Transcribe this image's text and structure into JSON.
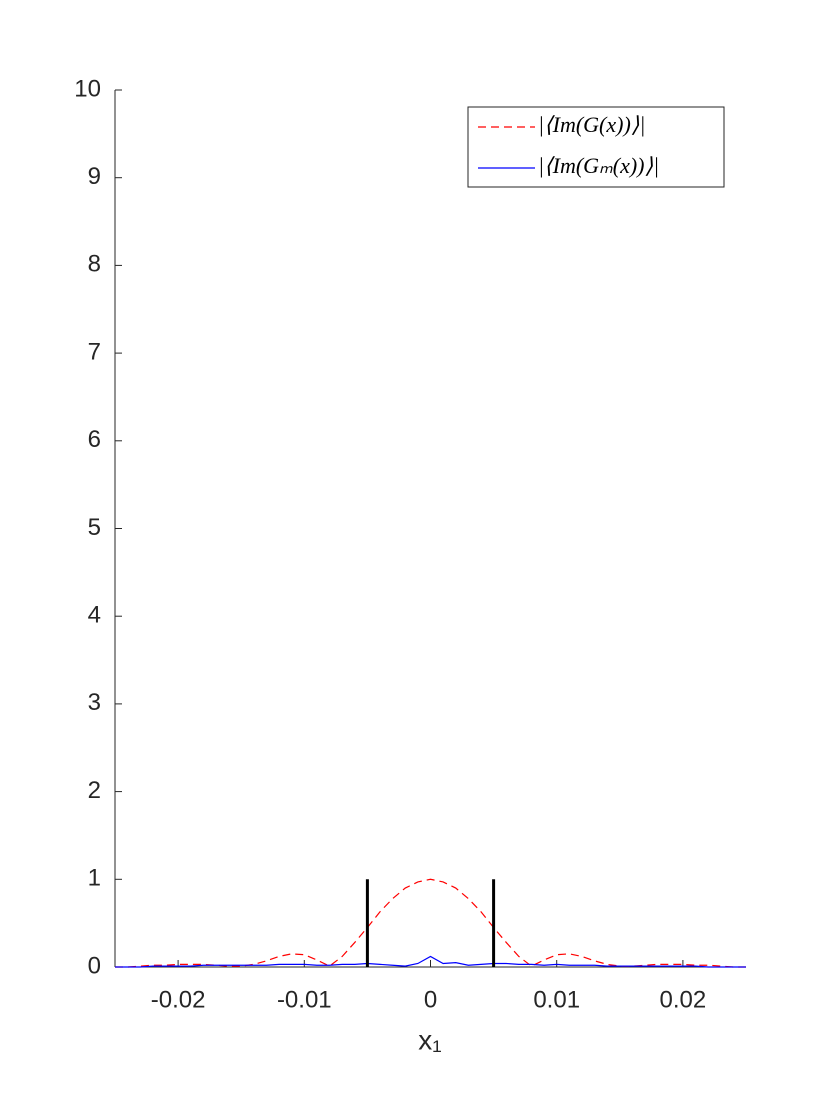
{
  "chart_data": {
    "type": "line",
    "x": [
      -0.025,
      -0.024,
      -0.023,
      -0.022,
      -0.021,
      -0.02,
      -0.019,
      -0.018,
      -0.017,
      -0.016,
      -0.015,
      -0.014,
      -0.013,
      -0.012,
      -0.011,
      -0.01,
      -0.009,
      -0.008,
      -0.007,
      -0.006,
      -0.005,
      -0.004,
      -0.003,
      -0.002,
      -0.001,
      0,
      0.001,
      0.002,
      0.003,
      0.004,
      0.005,
      0.006,
      0.007,
      0.008,
      0.009,
      0.01,
      0.011,
      0.012,
      0.013,
      0.014,
      0.015,
      0.016,
      0.017,
      0.018,
      0.019,
      0.02,
      0.021,
      0.022,
      0.023,
      0.024,
      0.025
    ],
    "series": [
      {
        "name": "|⟨Im(G(x))⟩|",
        "color": "#ff0000",
        "dash": true,
        "values": [
          0,
          0,
          0.01,
          0.02,
          0.02,
          0.03,
          0.03,
          0.03,
          0.02,
          0.01,
          0.01,
          0.03,
          0.07,
          0.12,
          0.15,
          0.14,
          0.08,
          0.01,
          0.12,
          0.28,
          0.45,
          0.63,
          0.78,
          0.9,
          0.97,
          1,
          0.97,
          0.9,
          0.78,
          0.63,
          0.45,
          0.28,
          0.12,
          0.01,
          0.08,
          0.14,
          0.15,
          0.12,
          0.07,
          0.03,
          0.01,
          0.01,
          0.02,
          0.03,
          0.03,
          0.03,
          0.02,
          0.02,
          0.01,
          0,
          0
        ]
      },
      {
        "name": "|⟨Im(Gₘ(x))⟩|",
        "color": "#0000ff",
        "dash": false,
        "values": [
          0,
          0,
          0,
          0.01,
          0.01,
          0.01,
          0.01,
          0.02,
          0.02,
          0.02,
          0.02,
          0.02,
          0.02,
          0.03,
          0.03,
          0.03,
          0.02,
          0.02,
          0.03,
          0.03,
          0.04,
          0.03,
          0.02,
          0.01,
          0.04,
          0.12,
          0.04,
          0.05,
          0.02,
          0.03,
          0.04,
          0.04,
          0.03,
          0.03,
          0.02,
          0.03,
          0.02,
          0.02,
          0.02,
          0.01,
          0.01,
          0.01,
          0.01,
          0.01,
          0.01,
          0.01,
          0.01,
          0,
          0,
          0,
          0
        ]
      }
    ],
    "boundaries": {
      "x": [
        -0.005,
        0.005
      ],
      "height": 1,
      "color": "#000000"
    },
    "x_label": "x₁",
    "xlim": [
      -0.025,
      0.025
    ],
    "ylim": [
      0,
      10
    ],
    "xticks": [
      -0.02,
      -0.01,
      0,
      0.01,
      0.02
    ],
    "yticks": [
      0,
      1,
      2,
      3,
      4,
      5,
      6,
      7,
      8,
      9,
      10
    ],
    "legend": "upper right"
  }
}
